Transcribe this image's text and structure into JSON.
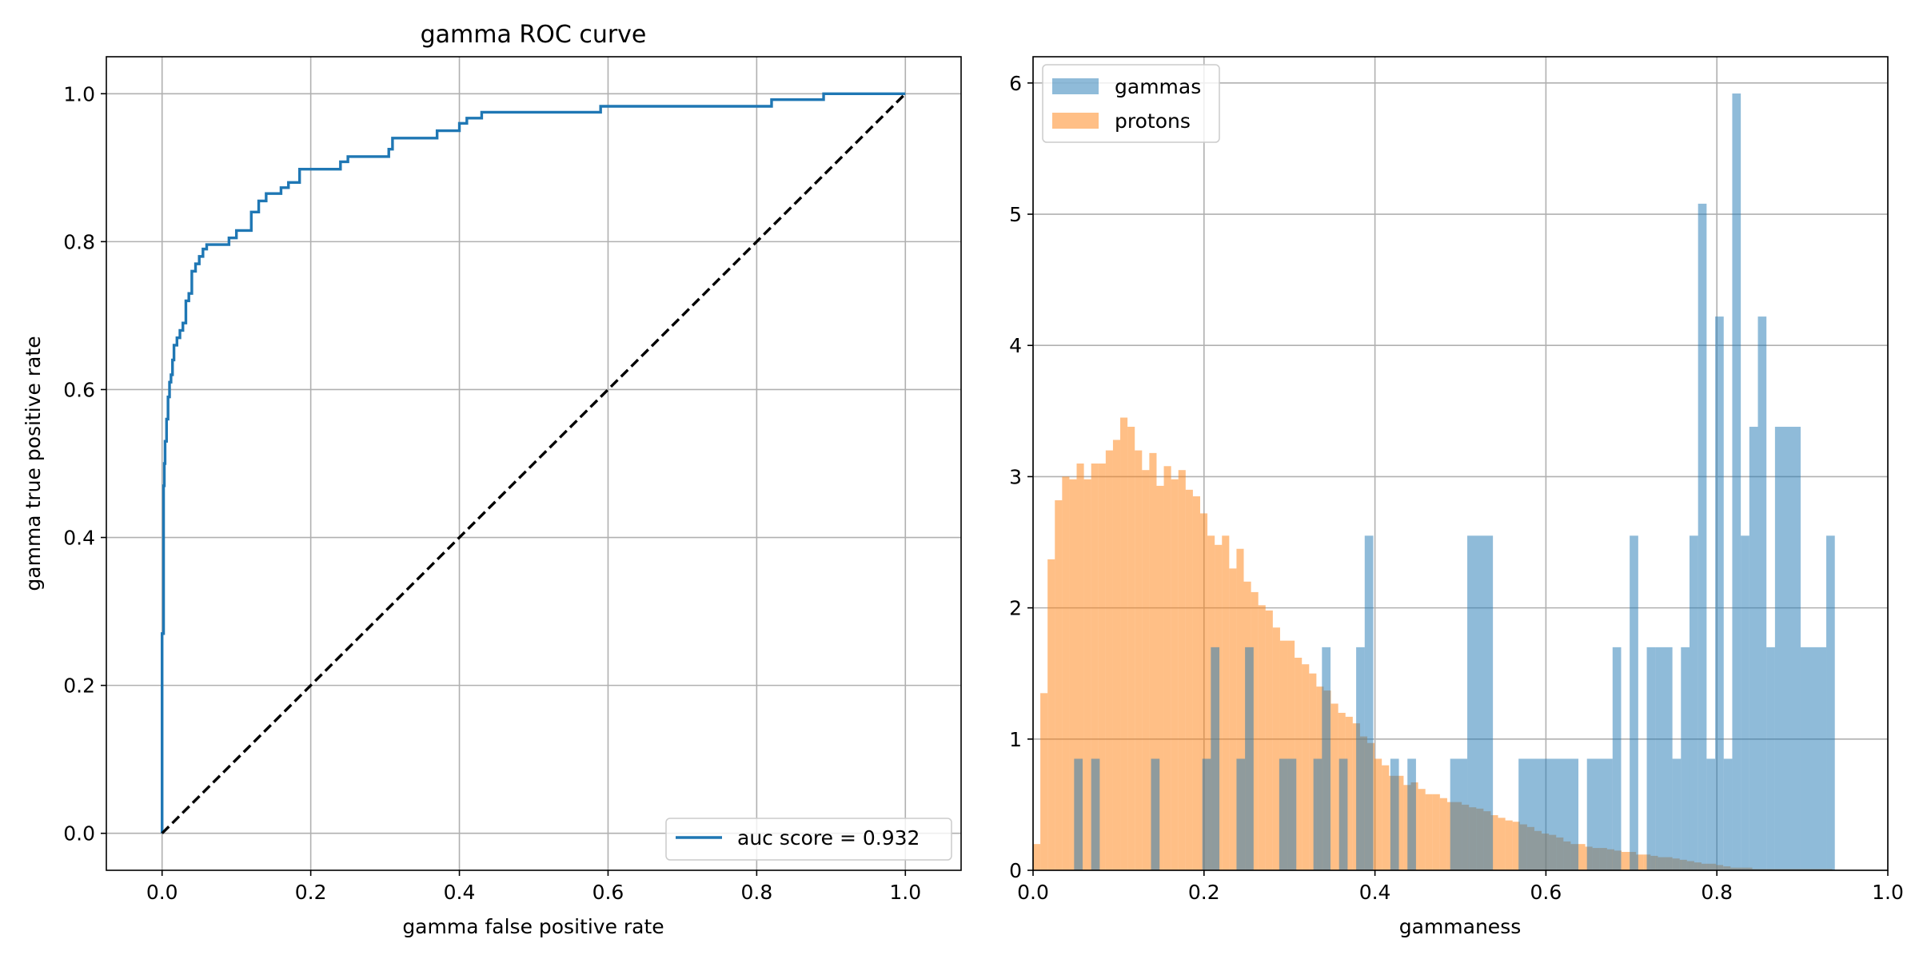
{
  "chart_data": [
    {
      "type": "line",
      "title": "gamma ROC curve",
      "xlabel": "gamma false positive rate",
      "ylabel": "gamma true positive rate",
      "xlim": [
        -0.075,
        1.075
      ],
      "ylim": [
        -0.05,
        1.05
      ],
      "xticks": [
        "0.0",
        "0.2",
        "0.4",
        "0.6",
        "0.8",
        "1.0"
      ],
      "yticks": [
        "0.0",
        "0.2",
        "0.4",
        "0.6",
        "0.8",
        "1.0"
      ],
      "grid": true,
      "legend_position": "lower-right",
      "series": [
        {
          "name": "auc score = 0.932",
          "color": "#1f77b4",
          "style": "solid",
          "x": [
            0.0,
            0.0,
            0.002,
            0.002,
            0.003,
            0.004,
            0.006,
            0.008,
            0.01,
            0.012,
            0.014,
            0.016,
            0.02,
            0.024,
            0.028,
            0.032,
            0.036,
            0.04,
            0.045,
            0.05,
            0.055,
            0.06,
            0.065,
            0.09,
            0.1,
            0.12,
            0.13,
            0.14,
            0.15,
            0.16,
            0.17,
            0.185,
            0.24,
            0.25,
            0.305,
            0.31,
            0.37,
            0.4,
            0.41,
            0.43,
            0.59,
            0.595,
            0.82,
            0.825,
            0.89,
            0.895,
            1.0
          ],
          "y": [
            0.0,
            0.27,
            0.4,
            0.47,
            0.5,
            0.53,
            0.56,
            0.59,
            0.61,
            0.62,
            0.64,
            0.66,
            0.67,
            0.68,
            0.69,
            0.72,
            0.73,
            0.76,
            0.77,
            0.78,
            0.79,
            0.796,
            0.796,
            0.805,
            0.815,
            0.84,
            0.855,
            0.865,
            0.865,
            0.873,
            0.88,
            0.898,
            0.908,
            0.915,
            0.925,
            0.94,
            0.95,
            0.96,
            0.967,
            0.975,
            0.983,
            0.983,
            0.992,
            0.992,
            1.0,
            1.0,
            1.0
          ]
        },
        {
          "name": "",
          "color": "#000000",
          "style": "dashed",
          "x": [
            0.0,
            1.0
          ],
          "y": [
            0.0,
            1.0
          ]
        }
      ]
    },
    {
      "type": "bar",
      "subtype": "histogram",
      "title": "",
      "xlabel": "gammaness",
      "ylabel": "",
      "xlim": [
        0.0,
        1.0
      ],
      "ylim": [
        0.0,
        6.2
      ],
      "xticks": [
        "0.0",
        "0.2",
        "0.4",
        "0.6",
        "0.8",
        "1.0"
      ],
      "yticks": [
        "0",
        "1",
        "2",
        "3",
        "4",
        "5",
        "6"
      ],
      "grid": true,
      "legend_position": "upper-left",
      "series": [
        {
          "name": "gammas",
          "color": "#1f77b4",
          "opacity": 0.5,
          "bins": [
            [
              0.048,
              0.058,
              0.85
            ],
            [
              0.068,
              0.078,
              0.85
            ],
            [
              0.138,
              0.148,
              0.85
            ],
            [
              0.198,
              0.208,
              0.85
            ],
            [
              0.208,
              0.218,
              1.7
            ],
            [
              0.238,
              0.248,
              0.85
            ],
            [
              0.248,
              0.258,
              1.7
            ],
            [
              0.288,
              0.298,
              0.85
            ],
            [
              0.298,
              0.308,
              0.85
            ],
            [
              0.328,
              0.338,
              0.85
            ],
            [
              0.338,
              0.348,
              1.7
            ],
            [
              0.358,
              0.368,
              0.85
            ],
            [
              0.378,
              0.388,
              1.7
            ],
            [
              0.388,
              0.398,
              2.55
            ],
            [
              0.418,
              0.428,
              0.85
            ],
            [
              0.438,
              0.448,
              0.85
            ],
            [
              0.488,
              0.508,
              0.85
            ],
            [
              0.508,
              0.538,
              2.55
            ],
            [
              0.568,
              0.638,
              0.85
            ],
            [
              0.648,
              0.678,
              0.85
            ],
            [
              0.678,
              0.688,
              1.7
            ],
            [
              0.698,
              0.708,
              2.55
            ],
            [
              0.718,
              0.728,
              1.7
            ],
            [
              0.728,
              0.748,
              1.7
            ],
            [
              0.748,
              0.758,
              0.85
            ],
            [
              0.758,
              0.768,
              1.7
            ],
            [
              0.768,
              0.778,
              2.55
            ],
            [
              0.778,
              0.788,
              5.08
            ],
            [
              0.788,
              0.798,
              0.85
            ],
            [
              0.798,
              0.808,
              4.22
            ],
            [
              0.808,
              0.818,
              0.85
            ],
            [
              0.818,
              0.828,
              5.92
            ],
            [
              0.828,
              0.838,
              2.55
            ],
            [
              0.838,
              0.848,
              3.38
            ],
            [
              0.848,
              0.858,
              4.22
            ],
            [
              0.858,
              0.868,
              1.7
            ],
            [
              0.868,
              0.898,
              3.38
            ],
            [
              0.898,
              0.928,
              1.7
            ],
            [
              0.928,
              0.938,
              2.55
            ]
          ]
        },
        {
          "name": "protons",
          "color": "#ff7f0e",
          "opacity": 0.5,
          "x_start": 0.0,
          "bin_width": 0.0085,
          "values": [
            0.2,
            1.35,
            2.37,
            2.82,
            3.0,
            2.98,
            3.1,
            2.98,
            3.1,
            3.1,
            3.2,
            3.28,
            3.45,
            3.38,
            3.2,
            3.05,
            3.18,
            2.93,
            3.08,
            2.98,
            3.05,
            2.9,
            2.85,
            2.72,
            2.55,
            2.48,
            2.55,
            2.3,
            2.45,
            2.2,
            2.12,
            2.02,
            1.98,
            1.85,
            1.75,
            1.75,
            1.62,
            1.57,
            1.5,
            1.4,
            1.37,
            1.27,
            1.2,
            1.17,
            1.12,
            1.02,
            0.97,
            0.85,
            0.8,
            0.72,
            0.72,
            0.65,
            0.67,
            0.62,
            0.58,
            0.58,
            0.55,
            0.52,
            0.52,
            0.5,
            0.48,
            0.47,
            0.45,
            0.42,
            0.4,
            0.38,
            0.37,
            0.35,
            0.33,
            0.3,
            0.28,
            0.27,
            0.25,
            0.22,
            0.2,
            0.2,
            0.18,
            0.17,
            0.17,
            0.16,
            0.15,
            0.14,
            0.14,
            0.12,
            0.12,
            0.11,
            0.1,
            0.1,
            0.09,
            0.08,
            0.07,
            0.06,
            0.05,
            0.05,
            0.04,
            0.03,
            0.02,
            0.02,
            0.02,
            0.01,
            0.01,
            0.01,
            0.01,
            0.01,
            0.01,
            0.01,
            0.01,
            0.01,
            0.01,
            0.01
          ]
        }
      ]
    }
  ]
}
